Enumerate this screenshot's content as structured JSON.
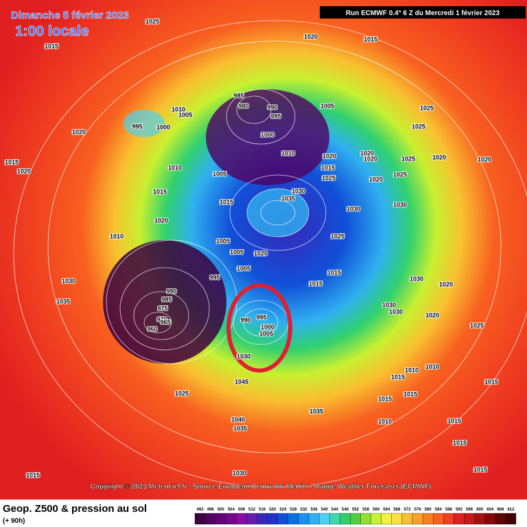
{
  "header": {
    "title": "Dimanche 5 février 2023",
    "time": "1:00 locale",
    "run": "Run ECMWF 0.4° 6 Z du Mercredi 1 février 2023"
  },
  "copyright": "Copyright © 2023 Meteociel.fr - Source European Centre for Medium-Range Weather Forecasts (ECMWF)",
  "legend": {
    "title": "Geop. Z500 & pression au sol",
    "lead": "(+ 90h)",
    "levels": [
      492,
      496,
      500,
      504,
      508,
      512,
      516,
      520,
      524,
      528,
      532,
      536,
      540,
      544,
      548,
      552,
      556,
      560,
      564,
      568,
      572,
      576,
      580,
      584,
      588,
      592,
      596,
      600,
      604,
      608,
      612
    ],
    "colors": [
      "#3c0040",
      "#500060",
      "#64007a",
      "#780090",
      "#8c0aa8",
      "#6a1ab0",
      "#3828b8",
      "#2030c8",
      "#1050d8",
      "#0a70e8",
      "#1890f0",
      "#30b0f0",
      "#50d0f0",
      "#40d8b0",
      "#30d070",
      "#50d040",
      "#90e030",
      "#c8f030",
      "#f0f040",
      "#f8e040",
      "#f8c030",
      "#f8a028",
      "#f88020",
      "#f86020",
      "#f04020",
      "#e02020",
      "#c81818",
      "#a81010",
      "#880808",
      "#600404",
      "#400000"
    ]
  },
  "isobars": [
    1025,
    1015,
    1020,
    1015,
    985,
    980,
    990,
    995,
    1005,
    1010,
    1005,
    995,
    1000,
    1025,
    1025,
    1020,
    1000,
    1010,
    1020,
    1020,
    1020,
    1025,
    1020,
    1020,
    1015,
    1020,
    1010,
    1005,
    1015,
    1025,
    1020,
    1025,
    1015,
    1030,
    1035,
    1015,
    1030,
    1030,
    1020,
    1010,
    1025,
    1005,
    1005,
    1020,
    1030,
    995,
    1005,
    1015,
    1015,
    1030,
    1020,
    990,
    985,
    975,
    970,
    965,
    960,
    1035,
    990,
    995,
    1000,
    1005,
    1030,
    1030,
    1020,
    1025,
    1030,
    1045,
    1025,
    1010,
    1015,
    1010,
    1015,
    1015,
    1015,
    1035,
    1040,
    1035,
    1010,
    1015,
    1015,
    1030,
    1015,
    1015
  ]
}
